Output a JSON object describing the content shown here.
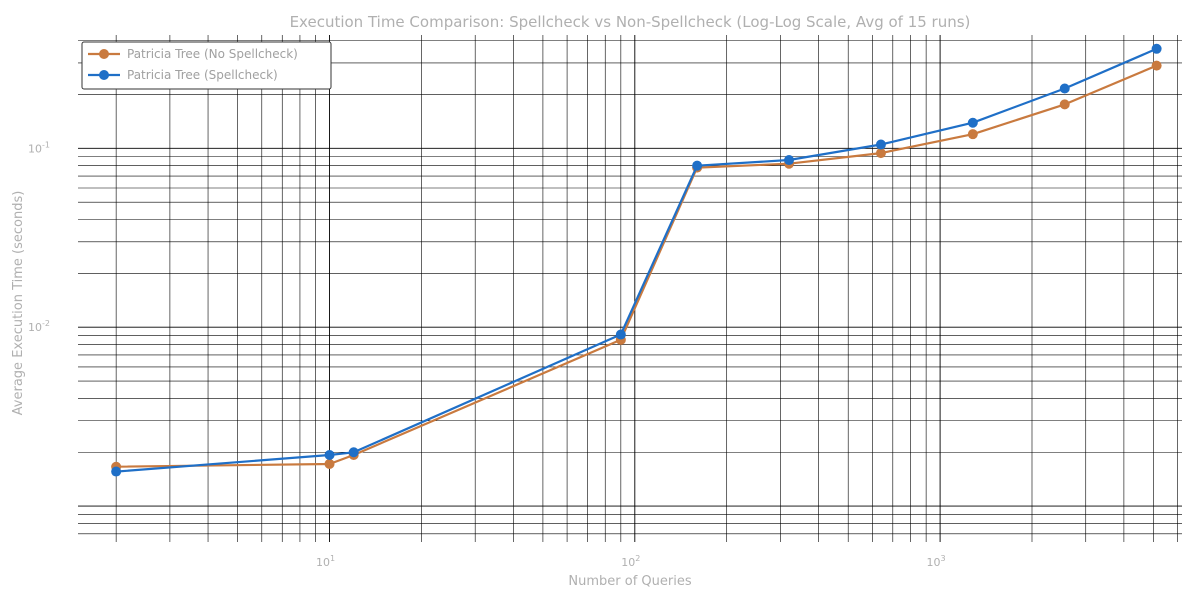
{
  "chart_data": {
    "type": "line",
    "title": "Execution Time Comparison: Spellcheck vs Non-Spellcheck (Log-Log Scale, Avg of 15 runs)",
    "xlabel": "Number of Queries",
    "ylabel": "Average Execution Time (seconds)",
    "xscale": "log",
    "yscale": "log",
    "xlim": [
      1.5,
      6200
    ],
    "ylim": [
      0.00063,
      0.43
    ],
    "x_ticks": [
      {
        "base": "10",
        "exp": "1"
      },
      {
        "base": "10",
        "exp": "2"
      },
      {
        "base": "10",
        "exp": "3"
      }
    ],
    "y_ticks": [
      {
        "base": "10",
        "exp": "-2"
      },
      {
        "base": "10",
        "exp": "-1"
      }
    ],
    "grid": true,
    "legend_position": "top-left",
    "series": [
      {
        "name": "Patricia Tree (No Spellcheck)",
        "color": "#c97a3f",
        "x": [
          2,
          10,
          12,
          90,
          160,
          320,
          640,
          1280,
          2560,
          5120
        ],
        "y": [
          0.00166,
          0.00172,
          0.00193,
          0.0085,
          0.078,
          0.082,
          0.094,
          0.12,
          0.176,
          0.29
        ]
      },
      {
        "name": "Patricia Tree (Spellcheck)",
        "color": "#1f6fc7",
        "x": [
          2,
          10,
          12,
          90,
          160,
          320,
          640,
          1280,
          2560,
          5120
        ],
        "y": [
          0.00156,
          0.00193,
          0.002,
          0.0091,
          0.08,
          0.086,
          0.105,
          0.139,
          0.216,
          0.36
        ]
      }
    ]
  }
}
